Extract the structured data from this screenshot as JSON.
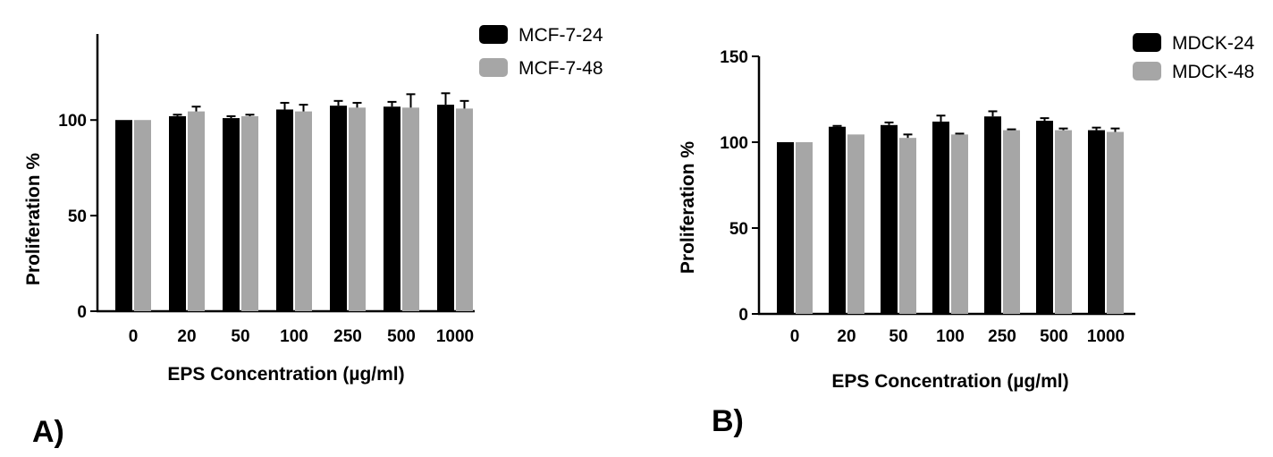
{
  "chart_data": [
    {
      "type": "bar",
      "panel_label": "A)",
      "xlabel": "EPS Concentration (µg/ml)",
      "ylabel": "Proliferation %",
      "categories": [
        "0",
        "20",
        "50",
        "100",
        "250",
        "500",
        "1000"
      ],
      "ylim": [
        0,
        145
      ],
      "yticks": [
        0,
        50,
        100
      ],
      "legend_position": "top-right",
      "series": [
        {
          "name": "MCF-7-24",
          "color": "#000000",
          "values": [
            100,
            102,
            101,
            105.5,
            107.5,
            107,
            108
          ],
          "errors": [
            0,
            0.8,
            1,
            3.5,
            2.5,
            2.5,
            6
          ]
        },
        {
          "name": "MCF-7-48",
          "color": "#a6a6a6",
          "values": [
            100,
            104.5,
            102,
            104.5,
            106.5,
            106.5,
            106
          ],
          "errors": [
            0,
            2.5,
            0.8,
            3.5,
            2.5,
            7,
            4
          ]
        }
      ]
    },
    {
      "type": "bar",
      "panel_label": "B)",
      "xlabel": "EPS Concentration (µg/ml)",
      "ylabel": "Proliferation %",
      "categories": [
        "0",
        "20",
        "50",
        "100",
        "250",
        "500",
        "1000"
      ],
      "ylim": [
        0,
        150
      ],
      "yticks": [
        0,
        50,
        100,
        150
      ],
      "legend_position": "top-right",
      "series": [
        {
          "name": "MDCK-24",
          "color": "#000000",
          "values": [
            100,
            109,
            110,
            112,
            115,
            112.5,
            107
          ],
          "errors": [
            0,
            0.5,
            1.5,
            3.5,
            3,
            1.5,
            1.5
          ]
        },
        {
          "name": "MDCK-48",
          "color": "#a6a6a6",
          "values": [
            100,
            104.5,
            102.5,
            104.5,
            107,
            107,
            106
          ],
          "errors": [
            0,
            0,
            2,
            0.5,
            0.5,
            1,
            2
          ]
        }
      ]
    }
  ]
}
